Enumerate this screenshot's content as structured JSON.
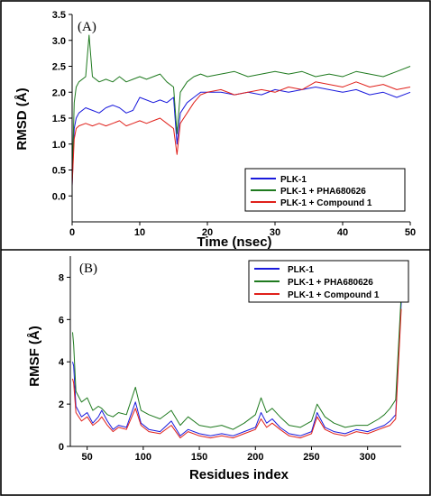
{
  "colors": {
    "blue": "#1a1adc",
    "green": "#1f7a1f",
    "red": "#e0201a"
  },
  "chart_data": [
    {
      "type": "line",
      "panel_label": "(A)",
      "title": "",
      "xlabel": "Time (nsec)",
      "ylabel": "RMSD (Å)",
      "xlim": [
        0,
        50
      ],
      "ylim": [
        -0.5,
        3.5
      ],
      "xticks": [
        0,
        10,
        20,
        30,
        40,
        50
      ],
      "yticks": [
        0.0,
        0.5,
        1.0,
        1.5,
        2.0,
        2.5,
        3.0,
        3.5
      ],
      "ytick_labels": [
        "0.0",
        "0.5",
        "1.0",
        "1.5",
        "2.0",
        "2.5",
        "3.0",
        "3.5"
      ],
      "legend_position": "bottom-right",
      "series": [
        {
          "name": "PLK-1",
          "color": "blue",
          "x": [
            0,
            0.3,
            0.6,
            1,
            2,
            3,
            4,
            5,
            6,
            7,
            8,
            9,
            10,
            11,
            12,
            13,
            14,
            15,
            15.5,
            16,
            17,
            18,
            19,
            20,
            22,
            24,
            26,
            28,
            30,
            32,
            34,
            36,
            38,
            40,
            42,
            44,
            46,
            48,
            50
          ],
          "values": [
            0.2,
            1.3,
            1.5,
            1.6,
            1.7,
            1.65,
            1.6,
            1.7,
            1.75,
            1.7,
            1.6,
            1.65,
            1.9,
            1.85,
            1.8,
            1.85,
            1.8,
            1.9,
            1.0,
            1.6,
            1.8,
            1.9,
            2.0,
            2.0,
            2.0,
            1.95,
            2.0,
            1.95,
            2.05,
            2.0,
            2.05,
            2.1,
            2.05,
            2.0,
            2.05,
            1.95,
            2.0,
            1.9,
            2.0
          ]
        },
        {
          "name": "PLK-1 + PHA680626",
          "color": "green",
          "x": [
            0,
            0.3,
            0.6,
            1,
            2,
            2.5,
            3,
            4,
            5,
            6,
            7,
            8,
            9,
            10,
            11,
            12,
            13,
            14,
            15,
            15.5,
            16,
            17,
            18,
            19,
            20,
            22,
            24,
            26,
            28,
            30,
            32,
            34,
            36,
            38,
            40,
            42,
            44,
            46,
            48,
            50
          ],
          "values": [
            0.3,
            1.8,
            2.1,
            2.2,
            2.3,
            3.1,
            2.3,
            2.2,
            2.25,
            2.2,
            2.3,
            2.2,
            2.25,
            2.3,
            2.25,
            2.3,
            2.35,
            2.2,
            2.1,
            1.2,
            2.0,
            2.2,
            2.3,
            2.35,
            2.3,
            2.35,
            2.4,
            2.3,
            2.35,
            2.4,
            2.35,
            2.4,
            2.3,
            2.35,
            2.3,
            2.4,
            2.35,
            2.3,
            2.4,
            2.5
          ]
        },
        {
          "name": "PLK-1 + Compound 1",
          "color": "red",
          "x": [
            0,
            0.3,
            0.6,
            1,
            2,
            3,
            4,
            5,
            6,
            7,
            8,
            9,
            10,
            11,
            12,
            13,
            14,
            15,
            15.5,
            16,
            17,
            18,
            19,
            20,
            22,
            24,
            26,
            28,
            30,
            32,
            34,
            36,
            38,
            40,
            42,
            44,
            46,
            48,
            50
          ],
          "values": [
            0.2,
            1.1,
            1.3,
            1.35,
            1.4,
            1.35,
            1.4,
            1.35,
            1.4,
            1.45,
            1.35,
            1.4,
            1.45,
            1.4,
            1.45,
            1.5,
            1.4,
            1.3,
            0.8,
            1.4,
            1.6,
            1.8,
            1.95,
            2.0,
            2.05,
            1.95,
            2.0,
            2.05,
            2.0,
            2.1,
            2.05,
            2.2,
            2.15,
            2.1,
            2.2,
            2.1,
            2.15,
            2.05,
            2.1
          ]
        }
      ]
    },
    {
      "type": "line",
      "panel_label": "(B)",
      "title": "",
      "xlabel": "Residues index",
      "ylabel": "RMSF (Å)",
      "xlim": [
        35,
        330
      ],
      "ylim": [
        0,
        9
      ],
      "xticks": [
        50,
        100,
        150,
        200,
        250,
        300
      ],
      "yticks": [
        0,
        2,
        4,
        6,
        8
      ],
      "ytick_labels": [
        "0",
        "2",
        "4",
        "6",
        "8"
      ],
      "legend_position": "top-right",
      "series": [
        {
          "name": "PLK-1",
          "color": "blue",
          "x": [
            37,
            38,
            40,
            45,
            50,
            55,
            60,
            63,
            68,
            73,
            78,
            85,
            93,
            98,
            105,
            115,
            125,
            133,
            140,
            150,
            160,
            170,
            180,
            190,
            200,
            205,
            210,
            215,
            222,
            230,
            240,
            250,
            255,
            262,
            270,
            280,
            290,
            300,
            310,
            315,
            320,
            325,
            330
          ],
          "values": [
            4.0,
            3.8,
            1.9,
            1.4,
            1.6,
            1.1,
            1.4,
            1.7,
            1.2,
            0.8,
            1.0,
            0.9,
            2.1,
            1.1,
            0.8,
            0.7,
            1.2,
            0.5,
            0.8,
            0.6,
            0.5,
            0.6,
            0.5,
            0.7,
            0.9,
            1.6,
            1.1,
            1.3,
            0.9,
            0.6,
            0.5,
            0.7,
            1.6,
            0.9,
            0.7,
            0.6,
            0.8,
            0.7,
            0.9,
            1.0,
            1.2,
            1.5,
            6.8
          ]
        },
        {
          "name": "PLK-1 + PHA680626",
          "color": "green",
          "x": [
            37,
            38,
            40,
            45,
            50,
            55,
            60,
            63,
            68,
            73,
            78,
            85,
            93,
            98,
            105,
            115,
            125,
            133,
            140,
            150,
            160,
            170,
            180,
            190,
            200,
            205,
            210,
            215,
            222,
            230,
            240,
            250,
            255,
            262,
            270,
            280,
            290,
            300,
            310,
            315,
            320,
            325,
            330
          ],
          "values": [
            5.4,
            4.8,
            2.6,
            2.1,
            2.3,
            1.7,
            1.9,
            1.8,
            1.5,
            1.4,
            1.6,
            1.5,
            2.8,
            1.7,
            1.5,
            1.3,
            1.7,
            1.0,
            1.4,
            1.0,
            0.9,
            1.0,
            0.8,
            1.1,
            1.5,
            2.3,
            1.6,
            1.8,
            1.4,
            1.0,
            0.9,
            1.2,
            2.0,
            1.4,
            1.1,
            0.9,
            1.0,
            1.0,
            1.3,
            1.5,
            1.8,
            2.2,
            7.2
          ]
        },
        {
          "name": "PLK-1 + Compound 1",
          "color": "red",
          "x": [
            37,
            38,
            40,
            45,
            50,
            55,
            60,
            63,
            68,
            73,
            78,
            85,
            93,
            98,
            105,
            115,
            125,
            133,
            140,
            150,
            160,
            170,
            180,
            190,
            200,
            205,
            210,
            215,
            222,
            230,
            240,
            250,
            255,
            262,
            270,
            280,
            290,
            300,
            310,
            315,
            320,
            325,
            330
          ],
          "values": [
            3.2,
            3.0,
            1.6,
            1.2,
            1.4,
            1.0,
            1.2,
            1.4,
            1.0,
            0.7,
            0.9,
            0.8,
            1.8,
            1.0,
            0.7,
            0.6,
            1.0,
            0.4,
            0.7,
            0.5,
            0.4,
            0.5,
            0.4,
            0.6,
            0.8,
            1.3,
            0.9,
            1.1,
            0.8,
            0.5,
            0.4,
            0.6,
            1.4,
            0.8,
            0.6,
            0.5,
            0.7,
            0.6,
            0.8,
            0.9,
            1.0,
            1.3,
            6.5
          ]
        }
      ]
    }
  ]
}
